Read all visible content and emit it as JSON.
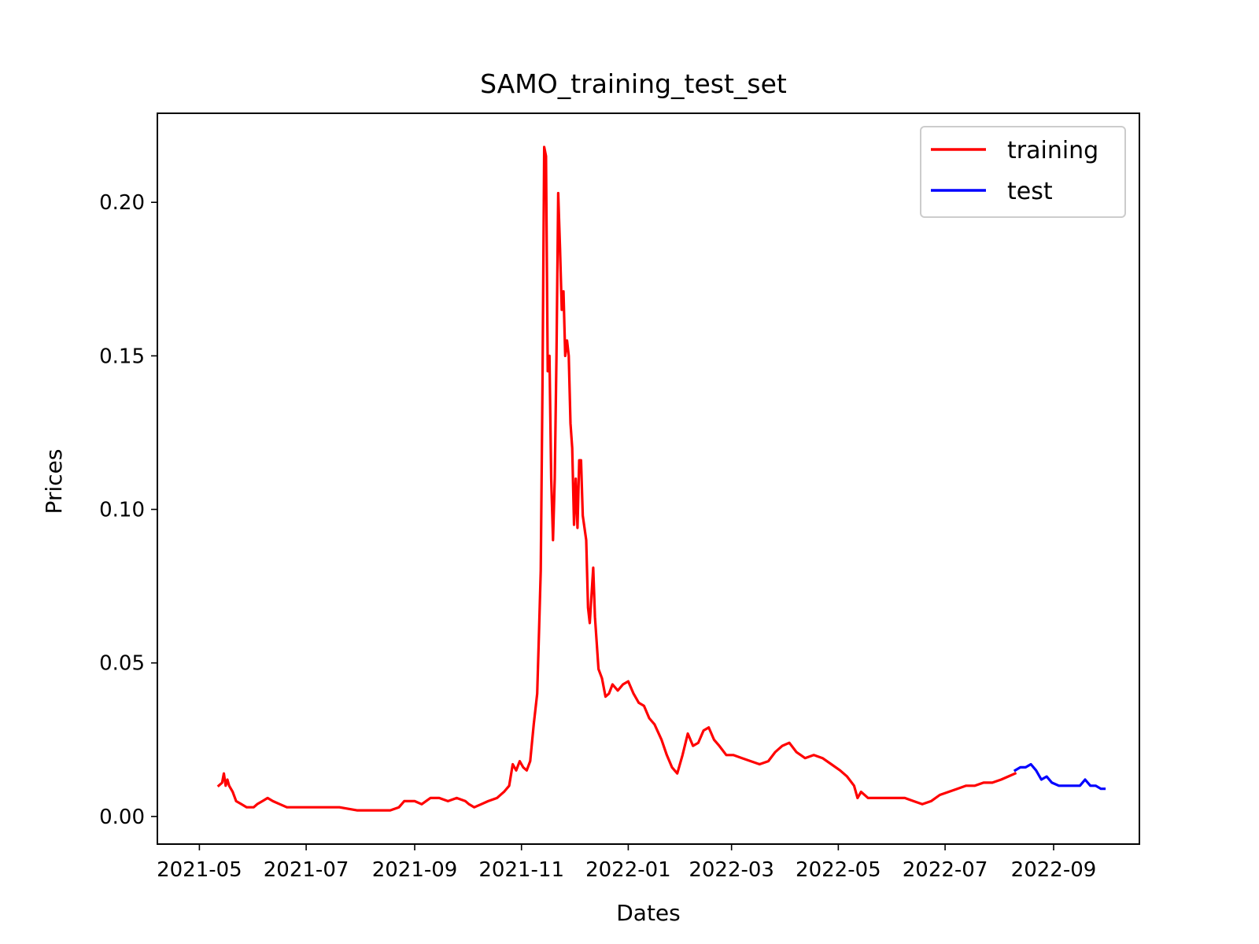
{
  "chart_data": {
    "type": "line",
    "title": "SAMO_training_test_set",
    "xlabel": "Dates",
    "ylabel": "Prices",
    "xlim": [
      "2021-04-07",
      "2022-10-20"
    ],
    "ylim": [
      -0.009,
      0.229
    ],
    "x_ticks": [
      "2021-05",
      "2021-07",
      "2021-09",
      "2021-11",
      "2022-01",
      "2022-03",
      "2022-05",
      "2022-07",
      "2022-09"
    ],
    "y_ticks": [
      "0.00",
      "0.05",
      "0.10",
      "0.15",
      "0.20"
    ],
    "legend_position": "top-right",
    "grid": false,
    "series": [
      {
        "name": "training",
        "color": "#ff0000",
        "points": [
          [
            "2021-05-12",
            0.01
          ],
          [
            "2021-05-14",
            0.011
          ],
          [
            "2021-05-15",
            0.014
          ],
          [
            "2021-05-16",
            0.01
          ],
          [
            "2021-05-17",
            0.012
          ],
          [
            "2021-05-18",
            0.01
          ],
          [
            "2021-05-20",
            0.008
          ],
          [
            "2021-05-22",
            0.005
          ],
          [
            "2021-05-25",
            0.004
          ],
          [
            "2021-05-28",
            0.003
          ],
          [
            "2021-06-01",
            0.003
          ],
          [
            "2021-06-03",
            0.004
          ],
          [
            "2021-06-06",
            0.005
          ],
          [
            "2021-06-09",
            0.006
          ],
          [
            "2021-06-12",
            0.005
          ],
          [
            "2021-06-16",
            0.004
          ],
          [
            "2021-06-20",
            0.003
          ],
          [
            "2021-06-25",
            0.003
          ],
          [
            "2021-07-01",
            0.003
          ],
          [
            "2021-07-10",
            0.003
          ],
          [
            "2021-07-20",
            0.003
          ],
          [
            "2021-07-30",
            0.002
          ],
          [
            "2021-08-10",
            0.002
          ],
          [
            "2021-08-18",
            0.002
          ],
          [
            "2021-08-23",
            0.003
          ],
          [
            "2021-08-26",
            0.005
          ],
          [
            "2021-09-01",
            0.005
          ],
          [
            "2021-09-05",
            0.004
          ],
          [
            "2021-09-10",
            0.006
          ],
          [
            "2021-09-15",
            0.006
          ],
          [
            "2021-09-20",
            0.005
          ],
          [
            "2021-09-25",
            0.006
          ],
          [
            "2021-09-30",
            0.005
          ],
          [
            "2021-10-02",
            0.004
          ],
          [
            "2021-10-05",
            0.003
          ],
          [
            "2021-10-09",
            0.004
          ],
          [
            "2021-10-13",
            0.005
          ],
          [
            "2021-10-18",
            0.006
          ],
          [
            "2021-10-22",
            0.008
          ],
          [
            "2021-10-25",
            0.01
          ],
          [
            "2021-10-27",
            0.017
          ],
          [
            "2021-10-29",
            0.015
          ],
          [
            "2021-10-31",
            0.018
          ],
          [
            "2021-11-02",
            0.016
          ],
          [
            "2021-11-04",
            0.015
          ],
          [
            "2021-11-06",
            0.018
          ],
          [
            "2021-11-08",
            0.03
          ],
          [
            "2021-11-10",
            0.04
          ],
          [
            "2021-11-11",
            0.06
          ],
          [
            "2021-11-12",
            0.08
          ],
          [
            "2021-11-13",
            0.14
          ],
          [
            "2021-11-14",
            0.218
          ],
          [
            "2021-11-15",
            0.215
          ],
          [
            "2021-11-16",
            0.145
          ],
          [
            "2021-11-17",
            0.15
          ],
          [
            "2021-11-18",
            0.11
          ],
          [
            "2021-11-19",
            0.09
          ],
          [
            "2021-11-20",
            0.11
          ],
          [
            "2021-11-21",
            0.15
          ],
          [
            "2021-11-22",
            0.203
          ],
          [
            "2021-11-23",
            0.185
          ],
          [
            "2021-11-24",
            0.165
          ],
          [
            "2021-11-25",
            0.171
          ],
          [
            "2021-11-26",
            0.15
          ],
          [
            "2021-11-27",
            0.155
          ],
          [
            "2021-11-28",
            0.15
          ],
          [
            "2021-11-29",
            0.128
          ],
          [
            "2021-11-30",
            0.12
          ],
          [
            "2021-12-01",
            0.095
          ],
          [
            "2021-12-02",
            0.11
          ],
          [
            "2021-12-03",
            0.094
          ],
          [
            "2021-12-04",
            0.116
          ],
          [
            "2021-12-05",
            0.116
          ],
          [
            "2021-12-06",
            0.098
          ],
          [
            "2021-12-08",
            0.09
          ],
          [
            "2021-12-09",
            0.068
          ],
          [
            "2021-12-10",
            0.063
          ],
          [
            "2021-12-12",
            0.081
          ],
          [
            "2021-12-13",
            0.065
          ],
          [
            "2021-12-15",
            0.048
          ],
          [
            "2021-12-17",
            0.045
          ],
          [
            "2021-12-19",
            0.039
          ],
          [
            "2021-12-21",
            0.04
          ],
          [
            "2021-12-23",
            0.043
          ],
          [
            "2021-12-26",
            0.041
          ],
          [
            "2021-12-29",
            0.043
          ],
          [
            "2022-01-01",
            0.044
          ],
          [
            "2022-01-04",
            0.04
          ],
          [
            "2022-01-07",
            0.037
          ],
          [
            "2022-01-10",
            0.036
          ],
          [
            "2022-01-13",
            0.032
          ],
          [
            "2022-01-16",
            0.03
          ],
          [
            "2022-01-20",
            0.025
          ],
          [
            "2022-01-23",
            0.02
          ],
          [
            "2022-01-26",
            0.016
          ],
          [
            "2022-01-29",
            0.014
          ],
          [
            "2022-02-01",
            0.02
          ],
          [
            "2022-02-04",
            0.027
          ],
          [
            "2022-02-07",
            0.023
          ],
          [
            "2022-02-10",
            0.024
          ],
          [
            "2022-02-13",
            0.028
          ],
          [
            "2022-02-16",
            0.029
          ],
          [
            "2022-02-19",
            0.025
          ],
          [
            "2022-02-22",
            0.023
          ],
          [
            "2022-02-26",
            0.02
          ],
          [
            "2022-03-02",
            0.02
          ],
          [
            "2022-03-07",
            0.019
          ],
          [
            "2022-03-12",
            0.018
          ],
          [
            "2022-03-17",
            0.017
          ],
          [
            "2022-03-22",
            0.018
          ],
          [
            "2022-03-26",
            0.021
          ],
          [
            "2022-03-30",
            0.023
          ],
          [
            "2022-04-03",
            0.024
          ],
          [
            "2022-04-07",
            0.021
          ],
          [
            "2022-04-12",
            0.019
          ],
          [
            "2022-04-17",
            0.02
          ],
          [
            "2022-04-22",
            0.019
          ],
          [
            "2022-04-27",
            0.017
          ],
          [
            "2022-05-02",
            0.015
          ],
          [
            "2022-05-06",
            0.013
          ],
          [
            "2022-05-10",
            0.01
          ],
          [
            "2022-05-12",
            0.006
          ],
          [
            "2022-05-14",
            0.008
          ],
          [
            "2022-05-18",
            0.006
          ],
          [
            "2022-05-25",
            0.006
          ],
          [
            "2022-06-01",
            0.006
          ],
          [
            "2022-06-08",
            0.006
          ],
          [
            "2022-06-13",
            0.005
          ],
          [
            "2022-06-18",
            0.004
          ],
          [
            "2022-06-23",
            0.005
          ],
          [
            "2022-06-28",
            0.007
          ],
          [
            "2022-07-03",
            0.008
          ],
          [
            "2022-07-08",
            0.009
          ],
          [
            "2022-07-13",
            0.01
          ],
          [
            "2022-07-18",
            0.01
          ],
          [
            "2022-07-23",
            0.011
          ],
          [
            "2022-07-28",
            0.011
          ],
          [
            "2022-08-02",
            0.012
          ],
          [
            "2022-08-06",
            0.013
          ],
          [
            "2022-08-10",
            0.014
          ]
        ]
      },
      {
        "name": "test",
        "color": "#0000ff",
        "points": [
          [
            "2022-08-10",
            0.015
          ],
          [
            "2022-08-13",
            0.016
          ],
          [
            "2022-08-16",
            0.016
          ],
          [
            "2022-08-19",
            0.017
          ],
          [
            "2022-08-22",
            0.015
          ],
          [
            "2022-08-25",
            0.012
          ],
          [
            "2022-08-28",
            0.013
          ],
          [
            "2022-08-31",
            0.011
          ],
          [
            "2022-09-04",
            0.01
          ],
          [
            "2022-09-08",
            0.01
          ],
          [
            "2022-09-12",
            0.01
          ],
          [
            "2022-09-16",
            0.01
          ],
          [
            "2022-09-19",
            0.012
          ],
          [
            "2022-09-22",
            0.01
          ],
          [
            "2022-09-25",
            0.01
          ],
          [
            "2022-09-28",
            0.009
          ],
          [
            "2022-09-30",
            0.009
          ]
        ]
      }
    ]
  }
}
